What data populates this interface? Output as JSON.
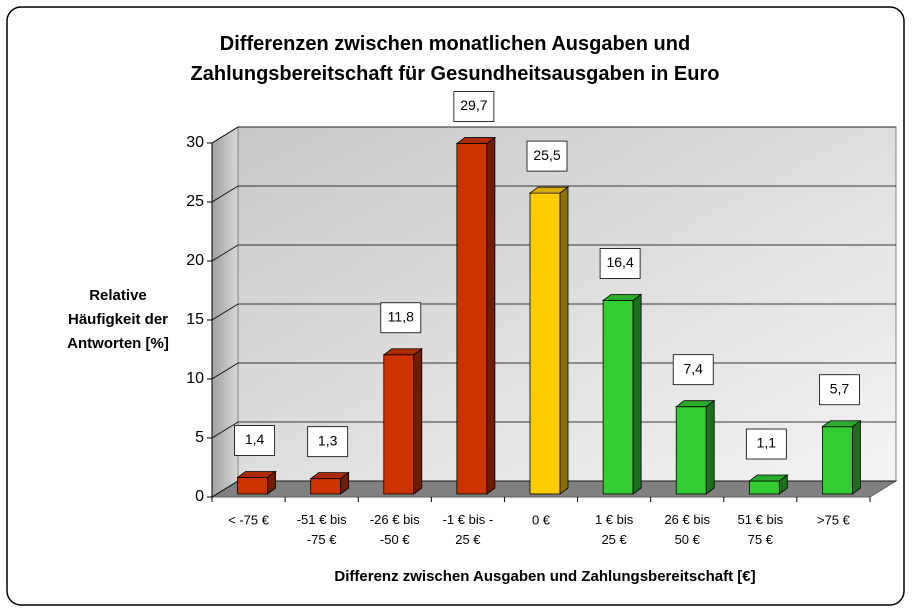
{
  "chart_data": {
    "type": "bar3d",
    "title": "Differenzen zwischen monatlichen Ausgaben und\nZahlungsbereitschaft für Gesundheitsausgaben in Euro",
    "y_label": "Relative\nHäufigkeit der\nAntworten [%]",
    "x_label": "Differenz zwischen Ausgaben und Zahlungsbereitschaft [€]",
    "categories": [
      "< -75 €",
      "-51 € bis\n-75 €",
      "-26 € bis\n-50 €",
      "-1 € bis -\n25 €",
      "0 €",
      "1 € bis\n25 €",
      "26 € bis\n50 €",
      "51 € bis\n75 €",
      ">75 €"
    ],
    "values": [
      1.4,
      1.3,
      11.8,
      29.7,
      25.5,
      16.4,
      7.4,
      1.1,
      5.7
    ],
    "value_labels": [
      "1,4",
      "1,3",
      "11,8",
      "29,7",
      "25,5",
      "16,4",
      "7,4",
      "1,1",
      "5,7"
    ],
    "colors": [
      "#cc3300",
      "#cc3300",
      "#cc3300",
      "#cc3300",
      "#ffcc00",
      "#33cc33",
      "#33cc33",
      "#33cc33",
      "#33cc33"
    ],
    "ylim": [
      0,
      30
    ],
    "yticks": [
      0,
      5,
      10,
      15,
      20,
      25,
      30
    ],
    "grid": true
  }
}
